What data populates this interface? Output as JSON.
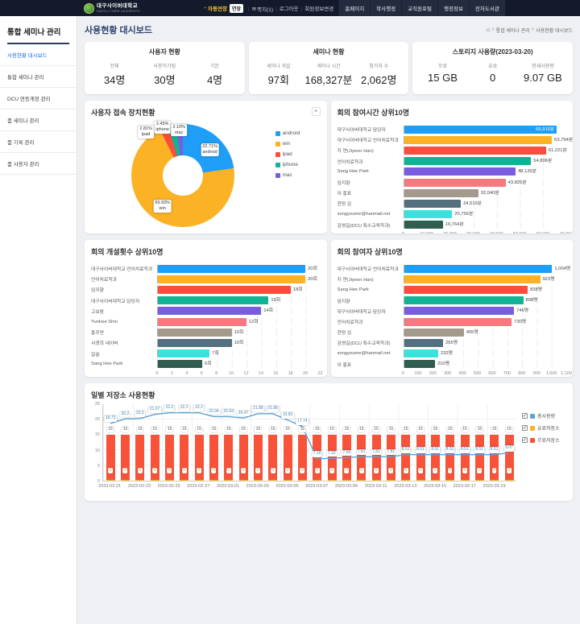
{
  "topbar": {
    "logo_title": "대구사이버대학교",
    "logo_subtitle": "DAEGU CYBER UNIVERSITY",
    "auto_extend_label": "자동연장",
    "auto_extend_badge": "연장",
    "links": [
      "쪽지(1)",
      "로그아웃",
      "회원정보변경"
    ],
    "tabs": [
      "홈페이지",
      "학사행정",
      "교직원포털",
      "행정정보",
      "전자도서관"
    ]
  },
  "sidebar": {
    "title": "통합 세미나 관리",
    "items": [
      {
        "label": "사용현황 대시보드",
        "active": true
      },
      {
        "label": "통합 세미나 관리",
        "active": false
      },
      {
        "label": "DCU 연동계정 관리",
        "active": false
      },
      {
        "label": "줌 세미나 관리",
        "active": false
      },
      {
        "label": "줌 기록 관리",
        "active": false
      },
      {
        "label": "줌 사용자 관리",
        "active": false
      }
    ]
  },
  "header": {
    "title": "사용현황 대시보드",
    "breadcrumb": [
      "통합 세미나 관리",
      "사용현황 대시보드"
    ]
  },
  "stat_cards": [
    {
      "title": "사용자 현황",
      "stats": [
        {
          "label": "전체",
          "value": "34명"
        },
        {
          "label": "사용허가됨",
          "value": "30명"
        },
        {
          "label": "기본",
          "value": "4명"
        }
      ]
    },
    {
      "title": "세미나 현황",
      "stats": [
        {
          "label": "세미나 개설",
          "value": "97회"
        },
        {
          "label": "세미나 시간",
          "value": "168,327분"
        },
        {
          "label": "참가자 수",
          "value": "2,062명"
        }
      ]
    },
    {
      "title": "스토리지 사용량(2023-03-20)",
      "stats": [
        {
          "label": "무료",
          "value": "15 GB"
        },
        {
          "label": "유료",
          "value": "0"
        },
        {
          "label": "현재사용량",
          "value": "9.07 GB"
        }
      ]
    }
  ],
  "palette": [
    "#1e9ef7",
    "#fbb224",
    "#fb4d3e",
    "#12b394",
    "#7a5ce0",
    "#f5797f",
    "#a49a8b",
    "#54707f",
    "#3ae2dd",
    "#2f5d50"
  ],
  "chart_data": [
    {
      "type": "pie",
      "title": "사용자 접속 장치현황",
      "labels": [
        "android",
        "win",
        "ipad",
        "iphone",
        "mac"
      ],
      "values": [
        22.71,
        69.93,
        2.81,
        2.45,
        2.1
      ],
      "value_labels": [
        "22.71%",
        "69.93%",
        "2.81%",
        "2.45%",
        "2.10%"
      ],
      "legend_position": "right"
    },
    {
      "type": "bar",
      "title": "회의 참여시간 상위10명",
      "orientation": "horizontal",
      "unit": "분",
      "xlim": [
        0,
        70000
      ],
      "categories": [
        "대구사이버대학교 담당자",
        "대구사이버대학교 언어치료학과",
        "지 연(Jiyeon Han)",
        "언어치료학과",
        "Sang Hee Park",
        "임지향",
        "이 홍표",
        "현양 김",
        "songyoume@hanmail.net",
        "김영길(DCU 특수교육학과)"
      ],
      "values": [
        65915,
        63794,
        61221,
        54806,
        48126,
        43825,
        32040,
        24515,
        20756,
        16764
      ],
      "value_labels": [
        "65,915분",
        "63,794분",
        "61,221분",
        "54,806분",
        "48,126분",
        "43,825분",
        "32,040분",
        "24,515분",
        "20,756분",
        "16,764분"
      ],
      "ticks": [
        "0",
        "10,000",
        "20,000",
        "30,000",
        "40,000",
        "50,000",
        "60,000",
        "70,000"
      ]
    },
    {
      "type": "bar",
      "title": "회의 개설횟수 상위10명",
      "orientation": "horizontal",
      "unit": "회",
      "xlim": [
        0,
        22
      ],
      "categories": [
        "대구사이버대학교 언어치료학과",
        "언어치료학과",
        "임지향",
        "대구사이버대학교 담당자",
        "고보람",
        "Yunhee Shin",
        "홍주연",
        "서경희 네이버",
        "일솔",
        "Sang Hee Park"
      ],
      "values": [
        20,
        20,
        18,
        15,
        14,
        12,
        10,
        10,
        7,
        6
      ],
      "value_labels": [
        "20회",
        "20회",
        "18회",
        "15회",
        "14회",
        "12회",
        "10회",
        "10회",
        "7회",
        "6회"
      ],
      "ticks": [
        "0",
        "2",
        "4",
        "6",
        "8",
        "10",
        "12",
        "14",
        "16",
        "18",
        "20",
        "22"
      ]
    },
    {
      "type": "bar",
      "title": "회의 참여자 상위10명",
      "orientation": "horizontal",
      "unit": "명",
      "xlim": [
        0,
        1100
      ],
      "categories": [
        "대구사이버대학교 언어치료학과",
        "지 연(Jiyeon Han)",
        "Sang Hee Park",
        "임지향",
        "대구사이버대학교 담당자",
        "언어치료학과",
        "현양 김",
        "김영길(DCU 특수교육학과)",
        "songyoume@hanmail.net",
        "이 홍표"
      ],
      "values": [
        1004,
        923,
        838,
        808,
        746,
        730,
        405,
        265,
        232,
        210
      ],
      "value_labels": [
        "1,004명",
        "923명",
        "838명",
        "808명",
        "746명",
        "730명",
        "405명",
        "265명",
        "232명",
        "210명"
      ],
      "ticks": [
        "0",
        "100",
        "200",
        "300",
        "400",
        "500",
        "600",
        "700",
        "800",
        "900",
        "1,000",
        "1,100"
      ]
    },
    {
      "type": "mixed",
      "title": "일별 저장소 사용현황",
      "ylim": [
        0,
        25
      ],
      "yticks": [
        0,
        5,
        10,
        15,
        20,
        25
      ],
      "dates": [
        "2023-02-21",
        "2023-02-22",
        "2023-02-23",
        "2023-02-24",
        "2023-02-25",
        "2023-02-26",
        "2023-02-27",
        "2023-02-28",
        "2023-03-01",
        "2023-03-02",
        "2023-03-03",
        "2023-03-04",
        "2023-03-05",
        "2023-03-06",
        "2023-03-07",
        "2023-03-08",
        "2023-03-09",
        "2023-03-10",
        "2023-03-11",
        "2023-03-12",
        "2023-03-13",
        "2023-03-14",
        "2023-03-15",
        "2023-03-16",
        "2023-03-17",
        "2023-03-18",
        "2023-03-19",
        "2023-03-20"
      ],
      "series": [
        {
          "name": "총사용량",
          "type": "line",
          "color": "#5ba3d4",
          "values": [
            18.73,
            20.2,
            20.3,
            21.67,
            22.2,
            22.2,
            22.2,
            20.94,
            20.94,
            20.47,
            21.88,
            21.88,
            19.83,
            17.74,
            7.16,
            7.32,
            7.59,
            7.81,
            7.81,
            7.81,
            8.51,
            8.51,
            8.51,
            8.51,
            8.51,
            8.51,
            8.51,
            9.07
          ]
        },
        {
          "name": "유료저장소",
          "type": "bar",
          "color": "#fbb224",
          "values": [
            0,
            0,
            0,
            0,
            0,
            0,
            0,
            0,
            0,
            0,
            0,
            0,
            0,
            0,
            0,
            0,
            0,
            0,
            0,
            0,
            0,
            0,
            0,
            0,
            0,
            0,
            0,
            0
          ]
        },
        {
          "name": "무료저장소",
          "type": "bar",
          "color": "#f8533a",
          "values": [
            15,
            15,
            15,
            15,
            15,
            15,
            15,
            15,
            15,
            15,
            15,
            15,
            15,
            15,
            15,
            15,
            15,
            15,
            15,
            15,
            15,
            15,
            15,
            15,
            15,
            15,
            15,
            15
          ]
        }
      ],
      "legend": [
        "총사용량",
        "유료저장소",
        "무료저장소"
      ]
    }
  ]
}
